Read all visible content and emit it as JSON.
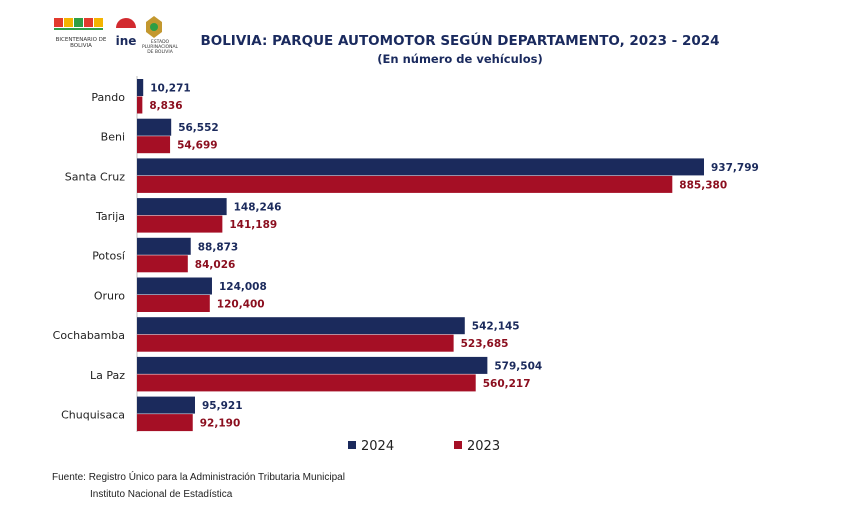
{
  "header": {
    "title": "BOLIVIA: PARQUE AUTOMOTOR SEGÚN DEPARTAMENTO, 2023 - 2024",
    "subtitle": "(En número de vehículos)"
  },
  "logos": {
    "bicentenario": "BICENTENARIO DE BOLIVIA",
    "ine": "ine",
    "estado": "ESTADO PLURINACIONAL DE BOLIVIA"
  },
  "chart_data": {
    "type": "bar",
    "orientation": "horizontal",
    "categories": [
      "Pando",
      "Beni",
      "Santa Cruz",
      "Tarija",
      "Potosí",
      "Oruro",
      "Cochabamba",
      "La Paz",
      "Chuquisaca"
    ],
    "series": [
      {
        "name": "2024",
        "color": "#1b2a5c",
        "label_color": "#1b2a5c",
        "values": [
          10271,
          56552,
          937799,
          148246,
          88873,
          124008,
          542145,
          579504,
          95921
        ],
        "labels": [
          "10,271",
          "56,552",
          "937,799",
          "148,246",
          "88,873",
          "124,008",
          "542,145",
          "579,504",
          "95,921"
        ]
      },
      {
        "name": "2023",
        "color": "#a50f25",
        "label_color": "#8b0e1e",
        "values": [
          8836,
          54699,
          885380,
          141189,
          84026,
          120400,
          523685,
          560217,
          92190
        ],
        "labels": [
          "8,836",
          "54,699",
          "885,380",
          "141,189",
          "84,026",
          "120,400",
          "523,685",
          "560,217",
          "92,190"
        ]
      }
    ],
    "xlim": [
      0,
      1000000
    ],
    "grid": false,
    "legend_position": "bottom"
  },
  "footer": {
    "source_line1": "Fuente: Registro Único para la Administración Tributaria Municipal",
    "source_line2": "Instituto Nacional de Estadística"
  }
}
